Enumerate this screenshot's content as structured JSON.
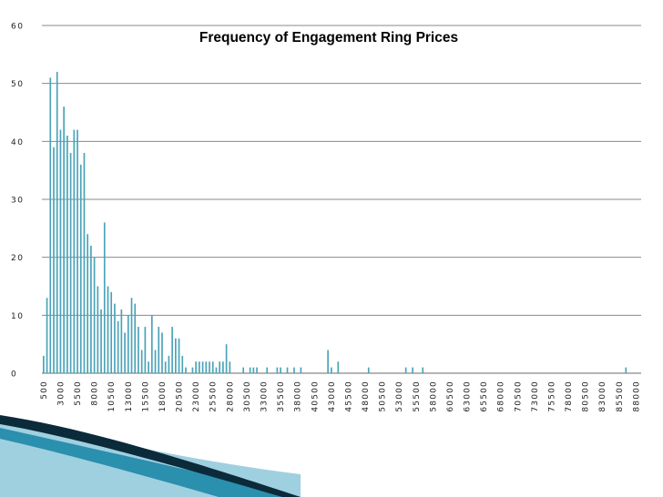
{
  "chart_data": {
    "type": "bar",
    "title": "Frequency of Engagement Ring Prices",
    "xlabel": "",
    "ylabel": "",
    "ylim": [
      0,
      60
    ],
    "y_ticks": [
      "0",
      "10",
      "20",
      "30",
      "40",
      "50",
      "60"
    ],
    "grid": true,
    "legend": "none",
    "bar_color": "#4aa3b8",
    "x_start": 500,
    "x_step": 500,
    "x_end": 88500,
    "x_tick_labels": [
      "500",
      "3000",
      "5500",
      "8000",
      "10500",
      "13000",
      "15500",
      "18000",
      "20500",
      "23000",
      "25500",
      "28000",
      "30500",
      "33000",
      "35500",
      "38000",
      "40500",
      "43000",
      "45500",
      "48000",
      "50500",
      "53000",
      "55500",
      "58000",
      "60500",
      "63000",
      "65500",
      "68000",
      "70500",
      "73000",
      "75500",
      "78000",
      "80500",
      "83000",
      "85500",
      "88000"
    ],
    "nonzero_values": {
      "500": 3,
      "1000": 13,
      "1500": 51,
      "2000": 39,
      "2500": 52,
      "3000": 42,
      "3500": 46,
      "4000": 41,
      "4500": 38,
      "5000": 42,
      "5500": 42,
      "6000": 36,
      "6500": 38,
      "7000": 24,
      "7500": 22,
      "8000": 20,
      "8500": 15,
      "9000": 11,
      "9500": 26,
      "10000": 15,
      "10500": 14,
      "11000": 12,
      "11500": 9,
      "12000": 11,
      "12500": 7,
      "13000": 10,
      "13500": 13,
      "14000": 12,
      "14500": 8,
      "15000": 4,
      "15500": 8,
      "16000": 2,
      "16500": 10,
      "17000": 4,
      "17500": 8,
      "18000": 7,
      "18500": 2,
      "19000": 3,
      "19500": 8,
      "20000": 6,
      "20500": 6,
      "21000": 3,
      "21500": 1,
      "22500": 1,
      "23000": 2,
      "23500": 2,
      "24000": 2,
      "24500": 2,
      "25000": 2,
      "25500": 2,
      "26000": 1,
      "26500": 2,
      "27000": 2,
      "27500": 5,
      "28000": 2,
      "30000": 1,
      "31000": 1,
      "31500": 1,
      "32000": 1,
      "33500": 1,
      "35000": 1,
      "35500": 1,
      "36500": 1,
      "37500": 1,
      "38500": 1,
      "42500": 4,
      "43000": 1,
      "44000": 2,
      "48500": 1,
      "54000": 1,
      "55000": 1,
      "56500": 1,
      "86500": 1
    }
  },
  "decor": {
    "swoosh_colors": [
      "#0b2a3a",
      "#2b8fae",
      "#9fd0e0"
    ]
  }
}
